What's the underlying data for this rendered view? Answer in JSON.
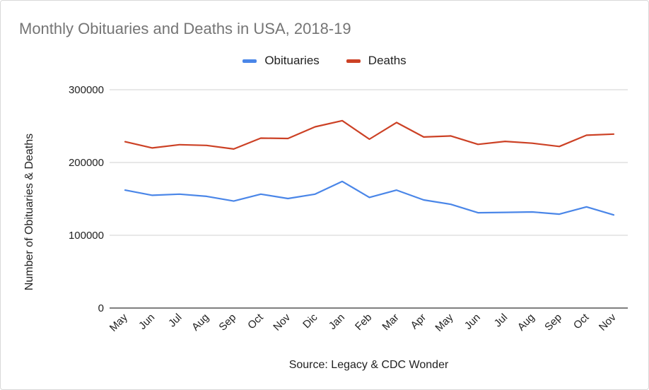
{
  "chart_data": {
    "type": "line",
    "title": "Monthly Obituaries and Deaths in USA, 2018-19",
    "xlabel": "Source: Legacy & CDC Wonder",
    "ylabel": "Number of Obituaries & Deaths",
    "categories": [
      "May",
      "Jun",
      "Jul",
      "Aug",
      "Sep",
      "Oct",
      "Nov",
      "Dic",
      "Jan",
      "Feb",
      "Mar",
      "Apr",
      "May",
      "Jun",
      "Jul",
      "Aug",
      "Sep",
      "Oct",
      "Nov"
    ],
    "y_ticks": [
      "0",
      "100000",
      "200000",
      "300000"
    ],
    "ylim": [
      0,
      300000
    ],
    "grid": true,
    "legend_position": "top",
    "series": [
      {
        "name": "Obituaries",
        "color": "#4a86e8",
        "values": [
          162000,
          155000,
          156500,
          153500,
          147000,
          156500,
          150500,
          156500,
          174000,
          152000,
          162000,
          148500,
          142500,
          131000,
          131500,
          132000,
          129000,
          139000,
          128000
        ]
      },
      {
        "name": "Deaths",
        "color": "#cc4125",
        "values": [
          228500,
          220000,
          224500,
          223500,
          218500,
          233500,
          233000,
          249000,
          257500,
          232000,
          255000,
          235000,
          236500,
          225000,
          229000,
          226500,
          222000,
          237500,
          239000
        ]
      }
    ]
  }
}
